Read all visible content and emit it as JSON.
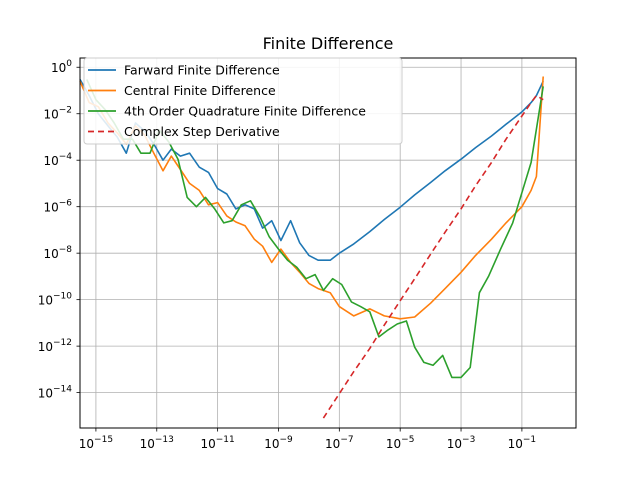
{
  "chart_data": {
    "type": "line",
    "title": "Finite Difference",
    "xlabel": "",
    "ylabel": "",
    "xscale": "log",
    "yscale": "log",
    "grid": true,
    "legend_position": "upper-left",
    "xlim": [
      3e-16,
      6
    ],
    "ylim": [
      3e-16,
      2.5
    ],
    "x_ticks": [
      {
        "exp": -15,
        "value": 1e-15
      },
      {
        "exp": -13,
        "value": 1e-13
      },
      {
        "exp": -11,
        "value": 1e-11
      },
      {
        "exp": -9,
        "value": 1e-09
      },
      {
        "exp": -7,
        "value": 1e-07
      },
      {
        "exp": -5,
        "value": 1e-05
      },
      {
        "exp": -3,
        "value": 0.001
      },
      {
        "exp": -1,
        "value": 0.1
      }
    ],
    "y_ticks": [
      {
        "label": "10",
        "exp": "0",
        "value": 1
      },
      {
        "label": "10",
        "exp": "−2",
        "value": 0.01
      },
      {
        "label": "10",
        "exp": "−4",
        "value": 0.0001
      },
      {
        "label": "10",
        "exp": "−6",
        "value": 1e-06
      },
      {
        "label": "10",
        "exp": "−8",
        "value": 1e-08
      },
      {
        "label": "10",
        "exp": "−10",
        "value": 1e-10
      },
      {
        "label": "10",
        "exp": "−12",
        "value": 1e-12
      },
      {
        "label": "10",
        "exp": "−14",
        "value": 1e-14
      }
    ],
    "x_tick_base": "10",
    "x_tick_minus": "−",
    "series": [
      {
        "name": "Farward Finite Difference",
        "color": "#1f77b4",
        "dash": "",
        "x": [
          3e-16,
          6e-16,
          1.2e-15,
          2.5e-15,
          5e-15,
          1e-14,
          2e-14,
          4e-14,
          8e-14,
          1.6e-13,
          3e-13,
          6e-13,
          1.2e-12,
          2.5e-12,
          5e-12,
          1e-11,
          2e-11,
          4e-11,
          8e-11,
          1.6e-10,
          3e-10,
          6e-10,
          1.2e-09,
          2.5e-09,
          5e-09,
          1e-08,
          2e-08,
          5e-08,
          1e-07,
          3e-07,
          1e-06,
          3e-06,
          1e-05,
          3e-05,
          0.0001,
          0.0003,
          0.001,
          0.003,
          0.01,
          0.03,
          0.1,
          0.2,
          0.3,
          0.5
        ],
        "y": [
          0.3,
          0.06,
          0.01,
          0.003,
          0.001,
          0.0002,
          0.004,
          0.0018,
          0.0005,
          0.0001,
          0.0003,
          0.00015,
          0.0002,
          5e-05,
          3e-05,
          6e-06,
          3.5e-06,
          8e-07,
          1.2e-06,
          8e-07,
          1.2e-07,
          2.5e-07,
          3.5e-08,
          2.5e-07,
          2.8e-08,
          8e-09,
          5e-09,
          5e-09,
          1e-08,
          2.5e-08,
          8.5e-08,
          2.8e-07,
          9.5e-07,
          3.2e-06,
          1.1e-05,
          3.5e-05,
          0.00011,
          0.00035,
          0.0011,
          0.0035,
          0.012,
          0.03,
          0.06,
          0.25
        ]
      },
      {
        "name": "Central Finite Difference",
        "color": "#ff7f0e",
        "dash": "",
        "x": [
          3e-16,
          6e-16,
          1.2e-15,
          2.5e-15,
          5e-15,
          1e-14,
          2e-14,
          4e-14,
          8e-14,
          1.6e-13,
          3e-13,
          6e-13,
          1.2e-12,
          2.5e-12,
          5e-12,
          1e-11,
          2e-11,
          4e-11,
          8e-11,
          1.6e-10,
          3e-10,
          6e-10,
          1.2e-09,
          2.5e-09,
          5e-09,
          1e-08,
          2e-08,
          5e-08,
          1e-07,
          3e-07,
          1e-06,
          3e-06,
          1e-05,
          3e-05,
          0.0001,
          0.0003,
          0.001,
          0.003,
          0.01,
          0.03,
          0.1,
          0.2,
          0.3,
          0.5
        ],
        "y": [
          0.25,
          0.03,
          0.02,
          0.004,
          0.0015,
          0.0005,
          0.003,
          0.0012,
          0.0002,
          3.5e-05,
          0.00015,
          4e-05,
          1e-05,
          5e-06,
          1.2e-06,
          1.5e-06,
          4e-07,
          2.2e-07,
          1.5e-07,
          4e-08,
          2e-08,
          4e-09,
          1.5e-08,
          4e-09,
          1.5e-09,
          5e-10,
          3e-10,
          2e-10,
          5e-11,
          2e-11,
          4e-11,
          2e-11,
          1.5e-11,
          1.8e-11,
          7e-11,
          3e-10,
          1.5e-09,
          8e-09,
          4e-08,
          2e-07,
          1e-06,
          5e-06,
          2e-05,
          0.4
        ]
      },
      {
        "name": "4th Order Quadrature Finite Difference",
        "color": "#2ca02c",
        "dash": "",
        "x": [
          5e-16,
          1e-15,
          2e-15,
          4e-15,
          8e-15,
          1.6e-14,
          3e-14,
          6e-14,
          1.2e-13,
          2.5e-13,
          5e-13,
          1e-12,
          2e-12,
          4e-12,
          8e-12,
          1.6e-11,
          3e-11,
          6e-11,
          1.2e-10,
          2.5e-10,
          5e-10,
          1e-09,
          2e-09,
          4e-09,
          8e-09,
          1.6e-08,
          3e-08,
          6e-08,
          1.2e-07,
          2.5e-07,
          5e-07,
          1e-06,
          2e-06,
          4e-06,
          8e-06,
          1.6e-05,
          3e-05,
          6e-05,
          0.00012,
          0.00025,
          0.0005,
          0.001,
          0.002,
          0.004,
          0.008,
          0.02,
          0.05,
          0.1,
          0.2,
          0.5
        ],
        "y": [
          0.3,
          0.04,
          0.015,
          0.004,
          0.0008,
          0.0008,
          0.0002,
          0.0002,
          0.002,
          0.0006,
          0.00011,
          2.5e-06,
          1e-06,
          2.5e-06,
          8e-07,
          2e-07,
          2.5e-07,
          1.2e-06,
          1.8e-06,
          3.5e-07,
          5e-08,
          1.5e-08,
          5e-09,
          2.5e-09,
          8e-10,
          1.2e-09,
          2.5e-10,
          8e-10,
          4.5e-10,
          8e-11,
          5e-11,
          3e-11,
          2.5e-12,
          5e-12,
          9e-12,
          1.2e-11,
          9e-13,
          2e-13,
          1.5e-13,
          4e-13,
          4.5e-14,
          4.5e-14,
          1.2e-13,
          2e-10,
          1e-09,
          1.5e-08,
          2e-07,
          4e-06,
          8e-05,
          0.15
        ]
      },
      {
        "name": "Complex Step Derivative",
        "color": "#d62728",
        "dash": "6,4",
        "x": [
          3e-08,
          1e-07,
          3e-07,
          1e-06,
          3e-06,
          1e-05,
          3e-05,
          0.0001,
          0.0003,
          0.001,
          0.003,
          0.01,
          0.03,
          0.1,
          0.2,
          0.3,
          0.5
        ],
        "y": [
          8e-16,
          9e-15,
          8e-14,
          8e-13,
          8e-12,
          9e-11,
          8e-10,
          9e-09,
          8e-08,
          8e-07,
          8e-06,
          8e-05,
          0.0008,
          0.008,
          0.03,
          0.06,
          0.04
        ]
      }
    ]
  }
}
